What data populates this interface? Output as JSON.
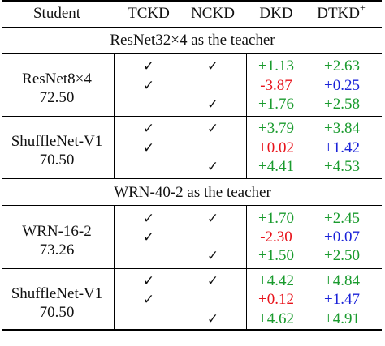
{
  "header": {
    "student": "Student",
    "tckd": "TCKD",
    "nckd": "NCKD",
    "dkd": "DKD",
    "dtkd": "DTKD",
    "dtkd_sup": "+"
  },
  "check_symbol": "✓",
  "colors": {
    "positive": "#1a9b2e",
    "negative": "#e8121a",
    "dtkd_lower": "#1a22d8"
  },
  "sections": [
    {
      "title": "ResNet32×4 as the teacher",
      "groups": [
        {
          "student_name": "ResNet8×4",
          "student_acc": "72.50",
          "rows": [
            {
              "tckd": true,
              "nckd": true,
              "dkd": "+1.13",
              "dtkd": "+2.63"
            },
            {
              "tckd": true,
              "nckd": false,
              "dkd": "-3.87",
              "dtkd": "+0.25"
            },
            {
              "tckd": false,
              "nckd": true,
              "dkd": "+1.76",
              "dtkd": "+2.58"
            }
          ]
        },
        {
          "student_name": "ShuffleNet-V1",
          "student_acc": "70.50",
          "rows": [
            {
              "tckd": true,
              "nckd": true,
              "dkd": "+3.79",
              "dtkd": "+3.84"
            },
            {
              "tckd": true,
              "nckd": false,
              "dkd": "+0.02",
              "dtkd": "+1.42"
            },
            {
              "tckd": false,
              "nckd": true,
              "dkd": "+4.41",
              "dtkd": "+4.53"
            }
          ]
        }
      ]
    },
    {
      "title": "WRN-40-2 as the teacher",
      "groups": [
        {
          "student_name": "WRN-16-2",
          "student_acc": "73.26",
          "rows": [
            {
              "tckd": true,
              "nckd": true,
              "dkd": "+1.70",
              "dtkd": "+2.45"
            },
            {
              "tckd": true,
              "nckd": false,
              "dkd": "-2.30",
              "dtkd": "+0.07"
            },
            {
              "tckd": false,
              "nckd": true,
              "dkd": "+1.50",
              "dtkd": "+2.50"
            }
          ]
        },
        {
          "student_name": "ShuffleNet-V1",
          "student_acc": "70.50",
          "rows": [
            {
              "tckd": true,
              "nckd": true,
              "dkd": "+4.42",
              "dtkd": "+4.84"
            },
            {
              "tckd": true,
              "nckd": false,
              "dkd": "+0.12",
              "dtkd": "+1.47"
            },
            {
              "tckd": false,
              "nckd": true,
              "dkd": "+4.62",
              "dtkd": "+4.91"
            }
          ]
        }
      ]
    }
  ]
}
